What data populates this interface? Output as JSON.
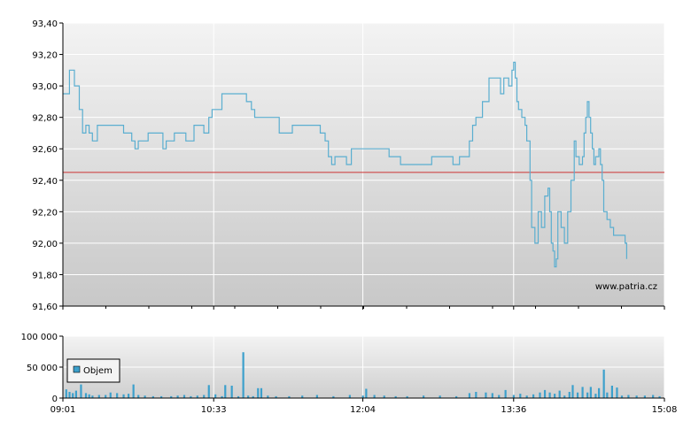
{
  "chart_data": [
    {
      "type": "line",
      "title": "",
      "xlabel": "",
      "ylabel": "",
      "ylim": [
        91.6,
        93.4
      ],
      "y_ticks": [
        "93,40",
        "93,20",
        "93,00",
        "92,80",
        "92,60",
        "92,40",
        "92,20",
        "92,00",
        "91,80",
        "91,60"
      ],
      "y_tick_values": [
        93.4,
        93.2,
        93.0,
        92.8,
        92.6,
        92.4,
        92.2,
        92.0,
        91.8,
        91.6
      ],
      "x_tick_labels": [
        "09:01",
        "10:33",
        "12:04",
        "13:36",
        "15:08"
      ],
      "x_tick_values_min": [
        0,
        92,
        183,
        275,
        367
      ],
      "x_range_min": [
        0,
        367
      ],
      "reference_line": {
        "value": 92.45,
        "color": "#cc3333"
      },
      "line_color": "#5aaed0",
      "grid": true,
      "watermark": "www.patria.cz",
      "series": [
        {
          "values": [
            [
              0,
              92.95
            ],
            [
              3,
              92.95
            ],
            [
              4,
              93.1
            ],
            [
              6,
              93.1
            ],
            [
              7,
              93.0
            ],
            [
              9,
              93.0
            ],
            [
              10,
              92.85
            ],
            [
              11,
              92.85
            ],
            [
              12,
              92.7
            ],
            [
              14,
              92.75
            ],
            [
              16,
              92.7
            ],
            [
              18,
              92.65
            ],
            [
              20,
              92.65
            ],
            [
              21,
              92.75
            ],
            [
              36,
              92.75
            ],
            [
              37,
              92.7
            ],
            [
              41,
              92.7
            ],
            [
              42,
              92.65
            ],
            [
              44,
              92.6
            ],
            [
              46,
              92.65
            ],
            [
              51,
              92.65
            ],
            [
              52,
              92.7
            ],
            [
              60,
              92.7
            ],
            [
              61,
              92.6
            ],
            [
              63,
              92.65
            ],
            [
              68,
              92.7
            ],
            [
              74,
              92.7
            ],
            [
              75,
              92.65
            ],
            [
              78,
              92.65
            ],
            [
              80,
              92.75
            ],
            [
              85,
              92.75
            ],
            [
              86,
              92.7
            ],
            [
              89,
              92.8
            ],
            [
              91,
              92.85
            ],
            [
              96,
              92.85
            ],
            [
              97,
              92.95
            ],
            [
              111,
              92.95
            ],
            [
              112,
              92.9
            ],
            [
              115,
              92.85
            ],
            [
              116,
              92.85
            ],
            [
              117,
              92.8
            ],
            [
              131,
              92.8
            ],
            [
              132,
              92.7
            ],
            [
              139,
              92.7
            ],
            [
              140,
              92.75
            ],
            [
              156,
              92.75
            ],
            [
              157,
              92.7
            ],
            [
              160,
              92.65
            ],
            [
              162,
              92.55
            ],
            [
              164,
              92.5
            ],
            [
              166,
              92.55
            ],
            [
              172,
              92.55
            ],
            [
              173,
              92.5
            ],
            [
              176,
              92.6
            ],
            [
              198,
              92.6
            ],
            [
              199,
              92.55
            ],
            [
              205,
              92.55
            ],
            [
              206,
              92.5
            ],
            [
              224,
              92.5
            ],
            [
              225,
              92.55
            ],
            [
              237,
              92.55
            ],
            [
              238,
              92.5
            ],
            [
              242,
              92.55
            ],
            [
              247,
              92.55
            ],
            [
              248,
              92.65
            ],
            [
              250,
              92.75
            ],
            [
              252,
              92.8
            ],
            [
              256,
              92.9
            ],
            [
              260,
              93.05
            ],
            [
              266,
              93.05
            ],
            [
              267,
              92.95
            ],
            [
              269,
              93.05
            ],
            [
              272,
              93.0
            ],
            [
              274,
              93.1
            ],
            [
              275,
              93.15
            ],
            [
              276,
              93.05
            ],
            [
              277,
              92.9
            ],
            [
              278,
              92.85
            ],
            [
              280,
              92.8
            ],
            [
              282,
              92.75
            ],
            [
              283,
              92.65
            ],
            [
              285,
              92.4
            ],
            [
              286,
              92.1
            ],
            [
              288,
              92.0
            ],
            [
              290,
              92.2
            ],
            [
              292,
              92.1
            ],
            [
              294,
              92.3
            ],
            [
              296,
              92.35
            ],
            [
              297,
              92.2
            ],
            [
              298,
              92.0
            ],
            [
              299,
              91.95
            ],
            [
              300,
              91.85
            ],
            [
              301,
              91.9
            ],
            [
              302,
              92.2
            ],
            [
              304,
              92.1
            ],
            [
              306,
              92.0
            ],
            [
              308,
              92.2
            ],
            [
              310,
              92.4
            ],
            [
              312,
              92.65
            ],
            [
              313,
              92.55
            ],
            [
              315,
              92.5
            ],
            [
              317,
              92.55
            ],
            [
              318,
              92.7
            ],
            [
              319,
              92.8
            ],
            [
              320,
              92.9
            ],
            [
              321,
              92.8
            ],
            [
              322,
              92.7
            ],
            [
              323,
              92.6
            ],
            [
              324,
              92.5
            ],
            [
              325,
              92.55
            ],
            [
              327,
              92.6
            ],
            [
              328,
              92.5
            ],
            [
              329,
              92.4
            ],
            [
              330,
              92.2
            ],
            [
              332,
              92.15
            ],
            [
              334,
              92.1
            ],
            [
              336,
              92.05
            ],
            [
              342,
              92.05
            ],
            [
              343,
              92.0
            ],
            [
              344,
              91.9
            ]
          ]
        }
      ]
    },
    {
      "type": "bar",
      "title": "",
      "ylim": [
        0,
        100000
      ],
      "y_ticks": [
        "100 000",
        "50 000",
        "0"
      ],
      "y_tick_values": [
        100000,
        50000,
        0
      ],
      "x_tick_labels": [
        "09:01",
        "10:33",
        "12:04",
        "13:36",
        "15:08"
      ],
      "x_tick_values_min": [
        0,
        92,
        183,
        275,
        367
      ],
      "x_range_min": [
        0,
        367
      ],
      "legend": [
        "Objem"
      ],
      "legend_position": "left",
      "bar_color": "#3ca0cc",
      "series": [
        {
          "name": "Objem",
          "values": [
            [
              2,
              14000
            ],
            [
              4,
              10000
            ],
            [
              6,
              8000
            ],
            [
              8,
              12000
            ],
            [
              11,
              22000
            ],
            [
              14,
              8000
            ],
            [
              16,
              6000
            ],
            [
              18,
              4000
            ],
            [
              22,
              5000
            ],
            [
              26,
              5000
            ],
            [
              29,
              9000
            ],
            [
              33,
              8000
            ],
            [
              37,
              6000
            ],
            [
              40,
              7000
            ],
            [
              43,
              22000
            ],
            [
              46,
              5000
            ],
            [
              50,
              4000
            ],
            [
              55,
              3000
            ],
            [
              60,
              3000
            ],
            [
              66,
              3000
            ],
            [
              70,
              4000
            ],
            [
              74,
              5000
            ],
            [
              78,
              3000
            ],
            [
              82,
              4000
            ],
            [
              86,
              5000
            ],
            [
              89,
              21000
            ],
            [
              93,
              6000
            ],
            [
              97,
              3000
            ],
            [
              99,
              21000
            ],
            [
              103,
              20000
            ],
            [
              107,
              3000
            ],
            [
              110,
              74000
            ],
            [
              113,
              4000
            ],
            [
              116,
              3000
            ],
            [
              119,
              16000
            ],
            [
              121,
              16000
            ],
            [
              125,
              4000
            ],
            [
              130,
              3000
            ],
            [
              138,
              3000
            ],
            [
              146,
              4000
            ],
            [
              155,
              5000
            ],
            [
              165,
              3000
            ],
            [
              175,
              5000
            ],
            [
              183,
              4000
            ],
            [
              185,
              15000
            ],
            [
              190,
              5000
            ],
            [
              196,
              4000
            ],
            [
              203,
              3000
            ],
            [
              210,
              3000
            ],
            [
              220,
              4000
            ],
            [
              230,
              4000
            ],
            [
              240,
              3000
            ],
            [
              248,
              8000
            ],
            [
              252,
              10000
            ],
            [
              258,
              9000
            ],
            [
              262,
              8000
            ],
            [
              266,
              5000
            ],
            [
              270,
              13000
            ],
            [
              275,
              5000
            ],
            [
              279,
              7000
            ],
            [
              283,
              4000
            ],
            [
              287,
              6000
            ],
            [
              291,
              9000
            ],
            [
              294,
              13000
            ],
            [
              297,
              9000
            ],
            [
              300,
              7000
            ],
            [
              303,
              12000
            ],
            [
              306,
              4000
            ],
            [
              309,
              10000
            ],
            [
              311,
              21000
            ],
            [
              314,
              9000
            ],
            [
              317,
              18000
            ],
            [
              320,
              9000
            ],
            [
              322,
              18000
            ],
            [
              325,
              7000
            ],
            [
              327,
              16000
            ],
            [
              330,
              46000
            ],
            [
              332,
              9000
            ],
            [
              335,
              20000
            ],
            [
              338,
              17000
            ],
            [
              341,
              4000
            ],
            [
              345,
              5000
            ],
            [
              350,
              4000
            ],
            [
              355,
              4000
            ],
            [
              360,
              5000
            ],
            [
              364,
              3000
            ]
          ]
        }
      ]
    }
  ]
}
